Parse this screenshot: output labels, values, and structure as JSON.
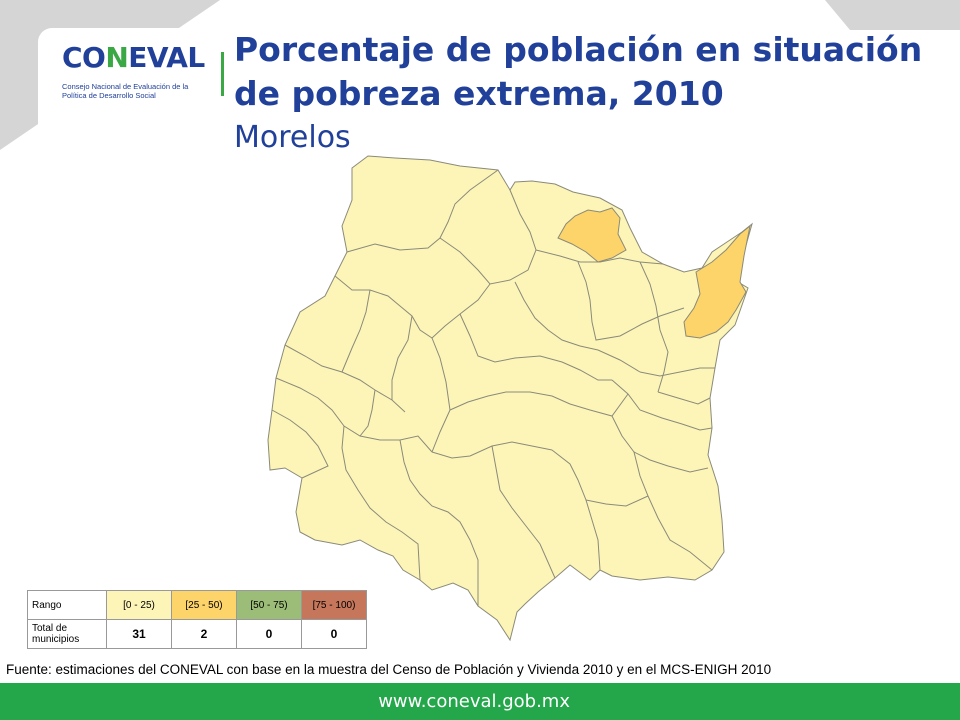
{
  "logo": {
    "wordmark_pre": "CO",
    "wordmark_accent": "N",
    "wordmark_post": "EVAL",
    "subtitle": "Consejo Nacional de Evaluación de la Política de Desarrollo Social"
  },
  "title": "Porcentaje de población en situación de pobreza extrema, 2010",
  "subtitle": "Morelos",
  "colors": {
    "brand_blue": "#20409a",
    "brand_green": "#3aa845",
    "footer_green": "#24a64a",
    "range_0_25": "#fdf5b8",
    "range_25_50": "#fdd46a",
    "range_50_75": "#9cbd77",
    "range_75_100": "#c5765b",
    "map_border": "#8a8a7a"
  },
  "legend": {
    "row_label_range": "Rango",
    "row_label_total": "Total de municipios",
    "ranges": [
      {
        "label": "[0 - 25)",
        "count": "31",
        "color_key": "range_0_25"
      },
      {
        "label": "[25 - 50)",
        "count": "2",
        "color_key": "range_25_50"
      },
      {
        "label": "[50 - 75)",
        "count": "0",
        "color_key": "range_50_75"
      },
      {
        "label": "[75 - 100)",
        "count": "0",
        "color_key": "range_75_100"
      }
    ]
  },
  "source": "Fuente: estimaciones del CONEVAL con base en la muestra del Censo de Población y Vivienda 2010 y en el MCS-ENIGH 2010",
  "footer": {
    "url": "www.coneval.gob.mx"
  }
}
